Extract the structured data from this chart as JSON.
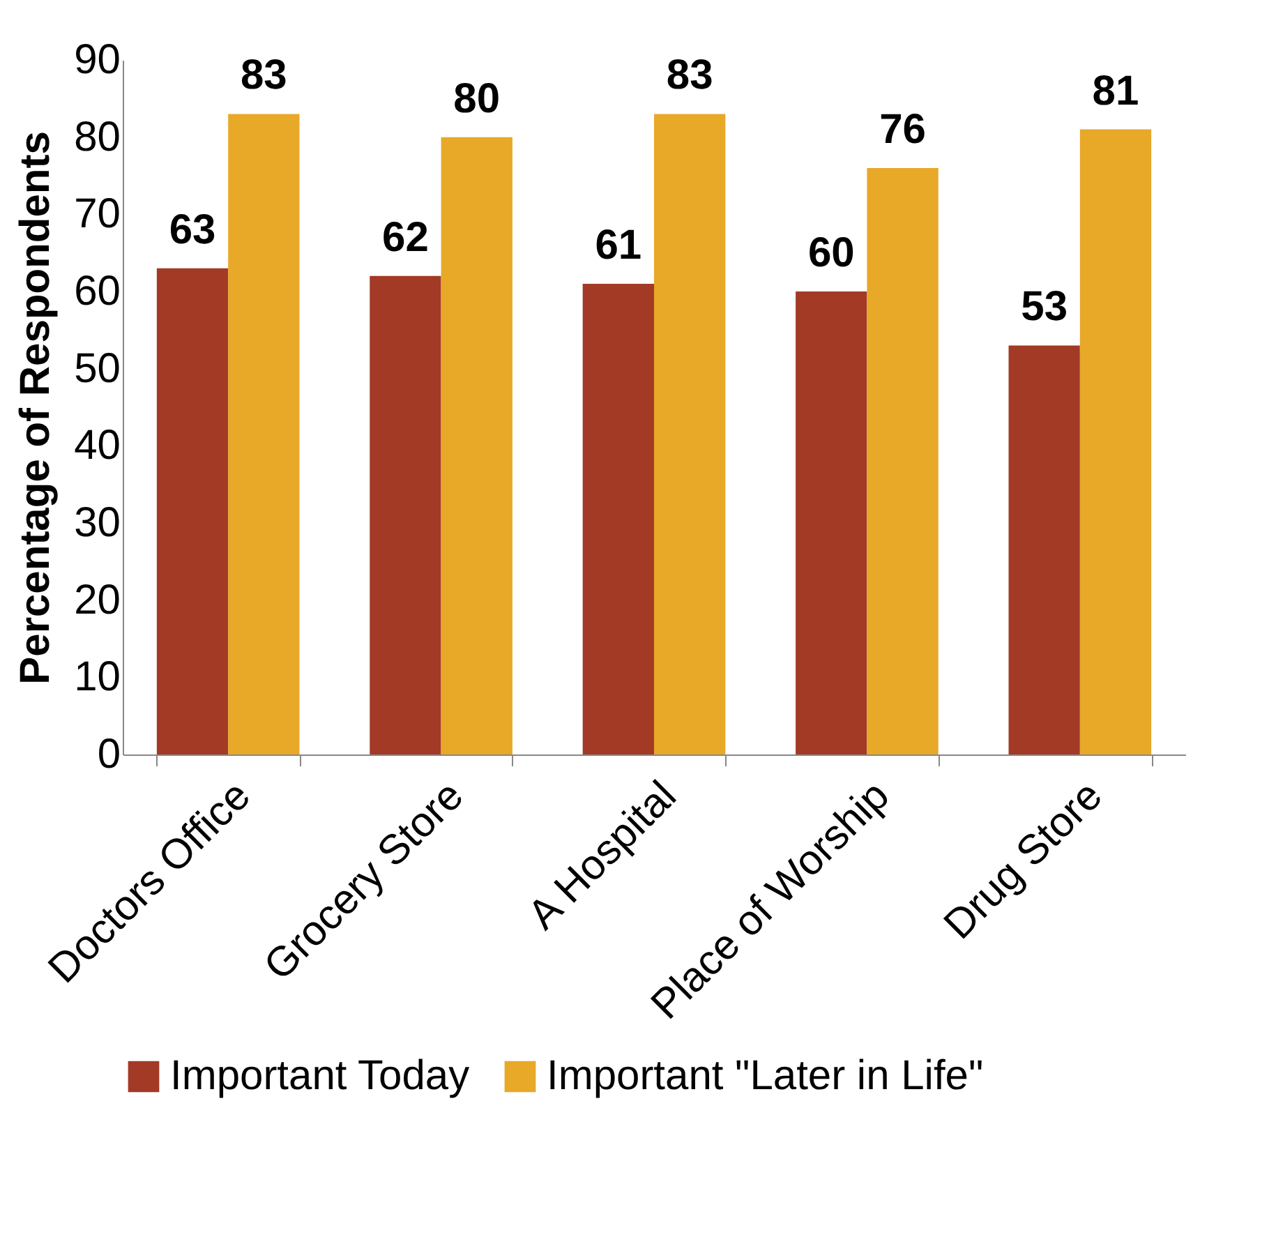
{
  "chart_data": {
    "type": "bar",
    "ylabel": "Percentage of Respondents",
    "categories": [
      "Doctors Office",
      "Grocery Store",
      "A Hospital",
      "Place of Worship",
      "Drug Store"
    ],
    "series": [
      {
        "name": "Important Today",
        "color": "#a23a26",
        "values": [
          63,
          62,
          61,
          60,
          53
        ]
      },
      {
        "name": "Important \"Later in Life\"",
        "color": "#e8a828",
        "values": [
          83,
          80,
          83,
          76,
          81
        ]
      }
    ],
    "ylim": [
      0,
      90
    ],
    "yticks": [
      0,
      10,
      20,
      30,
      40,
      50,
      60,
      70,
      80,
      90
    ],
    "grid": false,
    "legend": "bottom",
    "data_labels": true
  }
}
